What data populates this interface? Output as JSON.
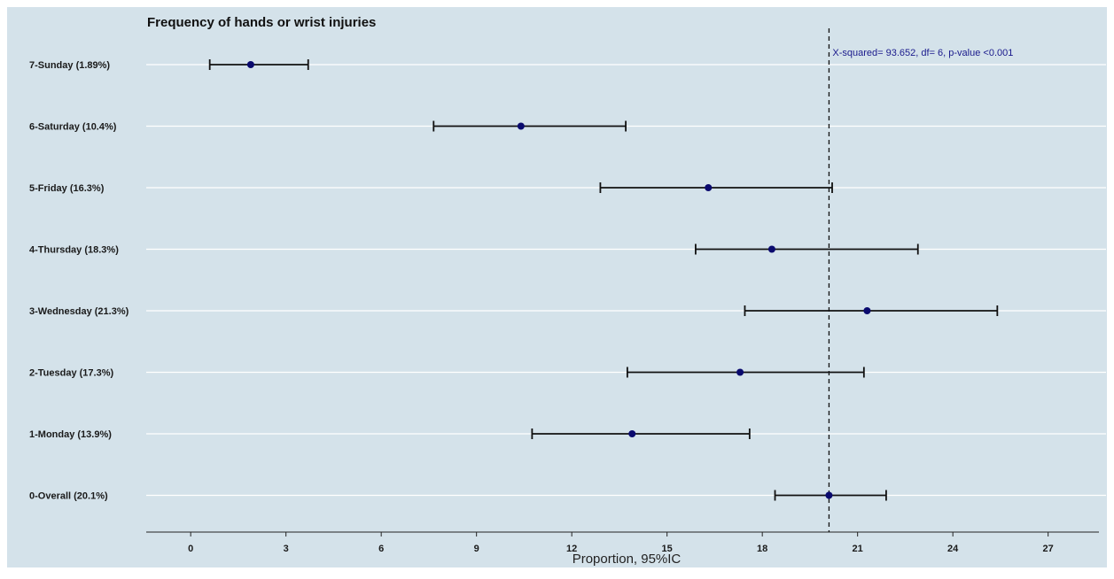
{
  "chart_data": {
    "type": "forest",
    "title": "Frequency of hands or wrist injuries",
    "xlabel": "Proportion, 95%IC",
    "ylabel": "",
    "xlim": [
      -1.4,
      28.6
    ],
    "x_ticks": [
      0,
      3,
      6,
      9,
      12,
      15,
      18,
      21,
      24,
      27
    ],
    "grid": true,
    "reference_line": 20.1,
    "annotation": "X-squared= 93.652, df= 6, p-value <0.001",
    "colors": {
      "background": "#d4e2ea",
      "grid": "#ffffff",
      "point": "#0a0a6e",
      "errorbar": "#111111",
      "annotation": "#1a1a8c"
    },
    "categories": [
      "7-Sunday (1.89%)",
      "6-Saturday (10.4%)",
      "5-Friday (16.3%)",
      "4-Thursday (18.3%)",
      "3-Wednesday (21.3%)",
      "2-Tuesday (17.3%)",
      "1-Monday (13.9%)",
      "0-Overall (20.1%)"
    ],
    "values": [
      1.89,
      10.4,
      16.3,
      18.3,
      21.3,
      17.3,
      13.9,
      20.1
    ],
    "ci_lower": [
      0.6,
      7.65,
      12.9,
      15.9,
      17.45,
      13.75,
      10.75,
      18.4
    ],
    "ci_upper": [
      3.7,
      13.7,
      20.2,
      22.9,
      25.4,
      21.2,
      17.6,
      21.9
    ]
  }
}
